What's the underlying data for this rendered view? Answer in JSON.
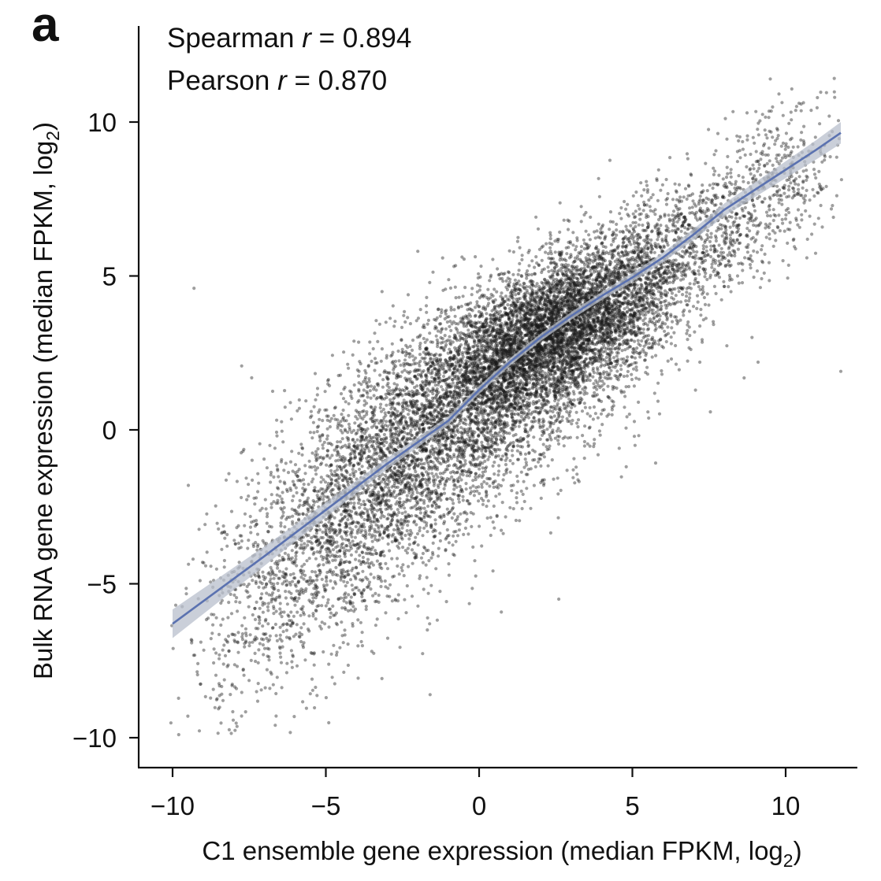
{
  "chart_data": {
    "type": "scatter",
    "panel_label": "a",
    "xlabel_main": "C1 ensemble gene expression (median FPKM, log",
    "xlabel_sub": "2",
    "xlabel_end": ")",
    "ylabel_main": "Bulk RNA gene expression (median FPKM, log",
    "ylabel_sub": "2",
    "ylabel_end": ")",
    "xlim": [
      -11.1,
      12.6
    ],
    "ylim": [
      -10.9,
      12.8
    ],
    "x_ticks": [
      -10,
      -5,
      0,
      5,
      10
    ],
    "x_tick_labels": [
      "−10",
      "−5",
      "0",
      "5",
      "10"
    ],
    "y_ticks": [
      -10,
      -5,
      0,
      5,
      10
    ],
    "y_tick_labels": [
      "−10",
      "−5",
      "0",
      "5",
      "10"
    ],
    "grid": false,
    "annotations": [
      {
        "prefix": "Spearman ",
        "variable": "r",
        "value": " = 0.894"
      },
      {
        "prefix": "Pearson ",
        "variable": "r",
        "value": " = 0.870"
      }
    ],
    "point_color": "#1a1a1a",
    "trend_color": "#5b72b0",
    "ci_color": "#b8bfcc",
    "trend_line": {
      "x": [
        -10,
        -7,
        -5,
        -3,
        -1,
        0,
        1,
        2,
        3,
        4,
        5,
        6,
        7,
        8,
        9,
        10,
        11,
        11.8
      ],
      "y": [
        -6.3,
        -4.1,
        -2.6,
        -1.1,
        0.3,
        1.3,
        2.2,
        3.0,
        3.7,
        4.35,
        4.95,
        5.6,
        6.35,
        7.15,
        7.8,
        8.45,
        9.1,
        9.65
      ]
    },
    "scatter_clusters": [
      {
        "n": 5200,
        "mx": 2.6,
        "my": 3.3,
        "sx": 2.0,
        "sy": 1.4,
        "rho": 0.6
      },
      {
        "n": 3200,
        "mx": 0.0,
        "my": 1.0,
        "sx": 2.6,
        "sy": 1.9,
        "rho": 0.55
      },
      {
        "n": 2300,
        "mx": -3.2,
        "my": -2.0,
        "sx": 2.2,
        "sy": 2.3,
        "rho": 0.55
      },
      {
        "n": 700,
        "mx": -6.2,
        "my": -5.0,
        "sx": 1.8,
        "sy": 2.2,
        "rho": 0.5
      },
      {
        "n": 1000,
        "mx": 6.8,
        "my": 6.2,
        "sx": 2.0,
        "sy": 1.3,
        "rho": 0.6
      },
      {
        "n": 300,
        "mx": 9.6,
        "my": 8.3,
        "sx": 1.2,
        "sy": 1.3,
        "rho": 0.4
      }
    ],
    "outliers": [
      {
        "x": -9.3,
        "y": 4.6
      },
      {
        "x": 11.8,
        "y": 1.9
      },
      {
        "x": 5.3,
        "y": 7.6
      },
      {
        "x": 9.1,
        "y": 2.2
      },
      {
        "x": -1.6,
        "y": -8.6
      },
      {
        "x": 2.6,
        "y": -5.5
      },
      {
        "x": 4.8,
        "y": -1.2
      },
      {
        "x": -2.0,
        "y": 5.8
      },
      {
        "x": 9.5,
        "y": 11.4
      },
      {
        "x": 11.6,
        "y": 10.8
      },
      {
        "x": -9.8,
        "y": -9.9
      },
      {
        "x": -9.5,
        "y": -9.3
      },
      {
        "x": 7.2,
        "y": 2.2
      }
    ]
  }
}
